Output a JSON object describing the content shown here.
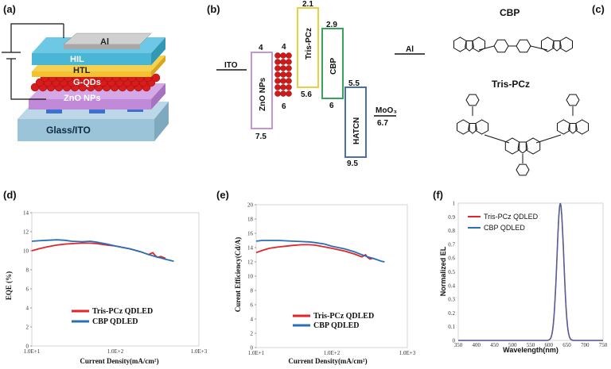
{
  "panels": {
    "a": "(a)",
    "b": "(b)",
    "c": "(c)",
    "d": "(d)",
    "e": "(e)",
    "f": "(f)"
  },
  "device": {
    "layers": [
      "Al",
      "HIL",
      "HTL",
      "G-QDs",
      "ZnO NPs",
      "Glass/ITO"
    ],
    "colors": {
      "al": "#b8b8b8",
      "hil": "#49b6d6",
      "htl": "#f2c230",
      "qd": "#d81c1c",
      "zno": "#c08ad8",
      "glass": "#9cc4d8",
      "ito": "#3b6fd0"
    }
  },
  "energy": {
    "ITO": "ITO",
    "Al": "Al",
    "zno": {
      "name": "ZnO NPs",
      "top": "4",
      "bottom": "7.5",
      "color": "#c394d6"
    },
    "qd": {
      "top": "4",
      "bottom": "6"
    },
    "trispcz": {
      "name": "Tris-PCz",
      "top": "2.1",
      "bottom": "5.6",
      "color": "#e8d040"
    },
    "cbp": {
      "name": "CBP",
      "top": "2.9",
      "bottom": "6",
      "color": "#3aa35a"
    },
    "hatcn": {
      "name": "HATCN",
      "top": "5.5",
      "bottom": "9.5",
      "color": "#4a6fb0"
    },
    "moo3": {
      "name": "MoO₃",
      "value": "6.7"
    }
  },
  "molecules": {
    "cbp": "CBP",
    "tris": "Tris-PCz"
  },
  "chart_data": [
    {
      "type": "line",
      "panel": "d",
      "xlabel": "Current Density(mA/cm²)",
      "ylabel": "EQE (%)",
      "xscale": "log",
      "xlim": [
        10,
        1000
      ],
      "ylim": [
        0,
        14
      ],
      "xticks": [
        "1.0E+1",
        "1.0E+2",
        "1.0E+3"
      ],
      "yticks": [
        "0",
        "2",
        "4",
        "6",
        "8",
        "10",
        "12",
        "14"
      ],
      "legend_position": "bottom-left",
      "series": [
        {
          "name": "Tris-PCz QDLED",
          "color": "#e0262a",
          "x": [
            10,
            12,
            15,
            20,
            25,
            30,
            40,
            50,
            60,
            80,
            100,
            150,
            200,
            250,
            280,
            300,
            320,
            350,
            400
          ],
          "y": [
            10.0,
            10.2,
            10.4,
            10.6,
            10.7,
            10.75,
            10.8,
            10.8,
            10.75,
            10.6,
            10.5,
            10.2,
            9.9,
            9.6,
            9.8,
            9.5,
            9.3,
            9.4,
            9.2
          ]
        },
        {
          "name": "CBP QDLED",
          "color": "#2a6fb6",
          "x": [
            10,
            12,
            15,
            20,
            25,
            30,
            40,
            50,
            60,
            80,
            100,
            150,
            200,
            250,
            300,
            350,
            400,
            450,
            500
          ],
          "y": [
            11.0,
            11.05,
            11.1,
            11.15,
            11.1,
            11.0,
            10.95,
            11.0,
            10.9,
            10.7,
            10.5,
            10.2,
            9.9,
            9.6,
            9.4,
            9.25,
            9.1,
            9.0,
            8.9
          ]
        }
      ]
    },
    {
      "type": "line",
      "panel": "e",
      "xlabel": "Current  Density(mA/cm²)",
      "ylabel": "Curent Efficiency(Cd/A)",
      "xscale": "log",
      "xlim": [
        10,
        1000
      ],
      "ylim": [
        0,
        20
      ],
      "xticks": [
        "1.0E+1",
        "1.0E+2",
        "1.0E+3"
      ],
      "yticks": [
        "0",
        "2",
        "4",
        "6",
        "8",
        "10",
        "12",
        "14",
        "16",
        "18",
        "20"
      ],
      "legend_position": "bottom-left",
      "series": [
        {
          "name": "Tris-PCz QDLED",
          "color": "#e0262a",
          "x": [
            10,
            12,
            15,
            20,
            25,
            30,
            40,
            50,
            60,
            80,
            100,
            150,
            200,
            250,
            280,
            300,
            320,
            350,
            400
          ],
          "y": [
            13.3,
            13.6,
            13.9,
            14.1,
            14.2,
            14.3,
            14.4,
            14.4,
            14.35,
            14.1,
            13.9,
            13.5,
            13.1,
            12.7,
            13.0,
            12.6,
            12.4,
            12.5,
            12.3
          ]
        },
        {
          "name": "CBP QDLED",
          "color": "#2a6fb6",
          "x": [
            10,
            12,
            15,
            20,
            25,
            30,
            40,
            50,
            60,
            80,
            100,
            150,
            200,
            250,
            300,
            350,
            400,
            450,
            500
          ],
          "y": [
            14.9,
            15.0,
            15.0,
            15.0,
            14.95,
            14.9,
            14.85,
            14.8,
            14.7,
            14.5,
            14.2,
            13.8,
            13.4,
            13.0,
            12.7,
            12.5,
            12.3,
            12.1,
            12.0
          ]
        }
      ]
    },
    {
      "type": "line",
      "panel": "f",
      "xlabel": "Wavelength(nm)",
      "ylabel": "Normalized EL",
      "xlim": [
        350,
        750
      ],
      "ylim": [
        0,
        1
      ],
      "xticks": [
        "350",
        "400",
        "450",
        "500",
        "550",
        "600",
        "650",
        "700",
        "750"
      ],
      "yticks": [
        "0",
        "0.1",
        "0.2",
        "0.3",
        "0.4",
        "0.5",
        "0.6",
        "0.7",
        "0.8",
        "0.9",
        "1"
      ],
      "legend_position": "top-left",
      "series": [
        {
          "name": "Tris-PCz QDLED",
          "color": "#e0262a",
          "peak": 632,
          "fwhm": 22
        },
        {
          "name": "CBP QDLED",
          "color": "#2a6fb6",
          "peak": 632,
          "fwhm": 22
        }
      ]
    }
  ]
}
